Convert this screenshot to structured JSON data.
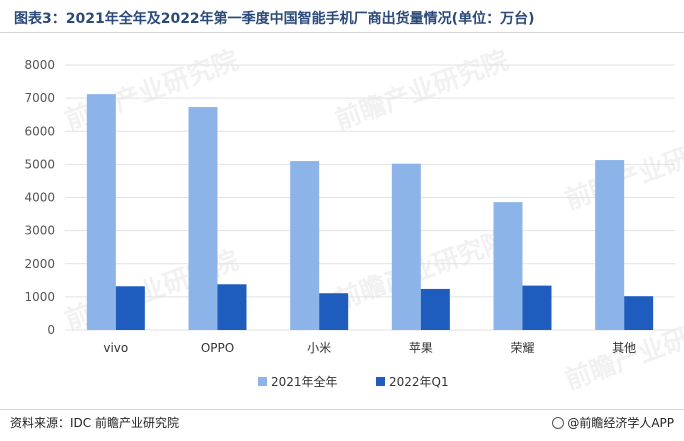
{
  "header": {
    "title": "图表3：2021年全年及2022年第一季度中国智能手机厂商出货量情况(单位：万台)"
  },
  "footer": {
    "source": "资料来源：IDC 前瞻产业研究院",
    "credit": "@前瞻经济学人APP"
  },
  "watermark": "前瞻产业研究院",
  "colors": {
    "series1": "#8db4e8",
    "series2": "#1e5dbd",
    "grid": "#e2e2e2",
    "axis_text": "#555555"
  },
  "chart_data": {
    "type": "bar",
    "title": "图表3：2021年全年及2022年第一季度中国智能手机厂商出货量情况(单位：万台)",
    "categories": [
      "vivo",
      "OPPO",
      "小米",
      "苹果",
      "荣耀",
      "其他"
    ],
    "series": [
      {
        "name": "2021年全年",
        "values": [
          7120,
          6730,
          5100,
          5020,
          3860,
          5130
        ]
      },
      {
        "name": "2022年Q1",
        "values": [
          1320,
          1380,
          1110,
          1240,
          1340,
          1020
        ]
      }
    ],
    "y_ticks": [
      0,
      1000,
      2000,
      3000,
      4000,
      5000,
      6000,
      7000,
      8000
    ],
    "ylim": [
      0,
      8000
    ],
    "grid": true,
    "legend_position": "bottom"
  }
}
